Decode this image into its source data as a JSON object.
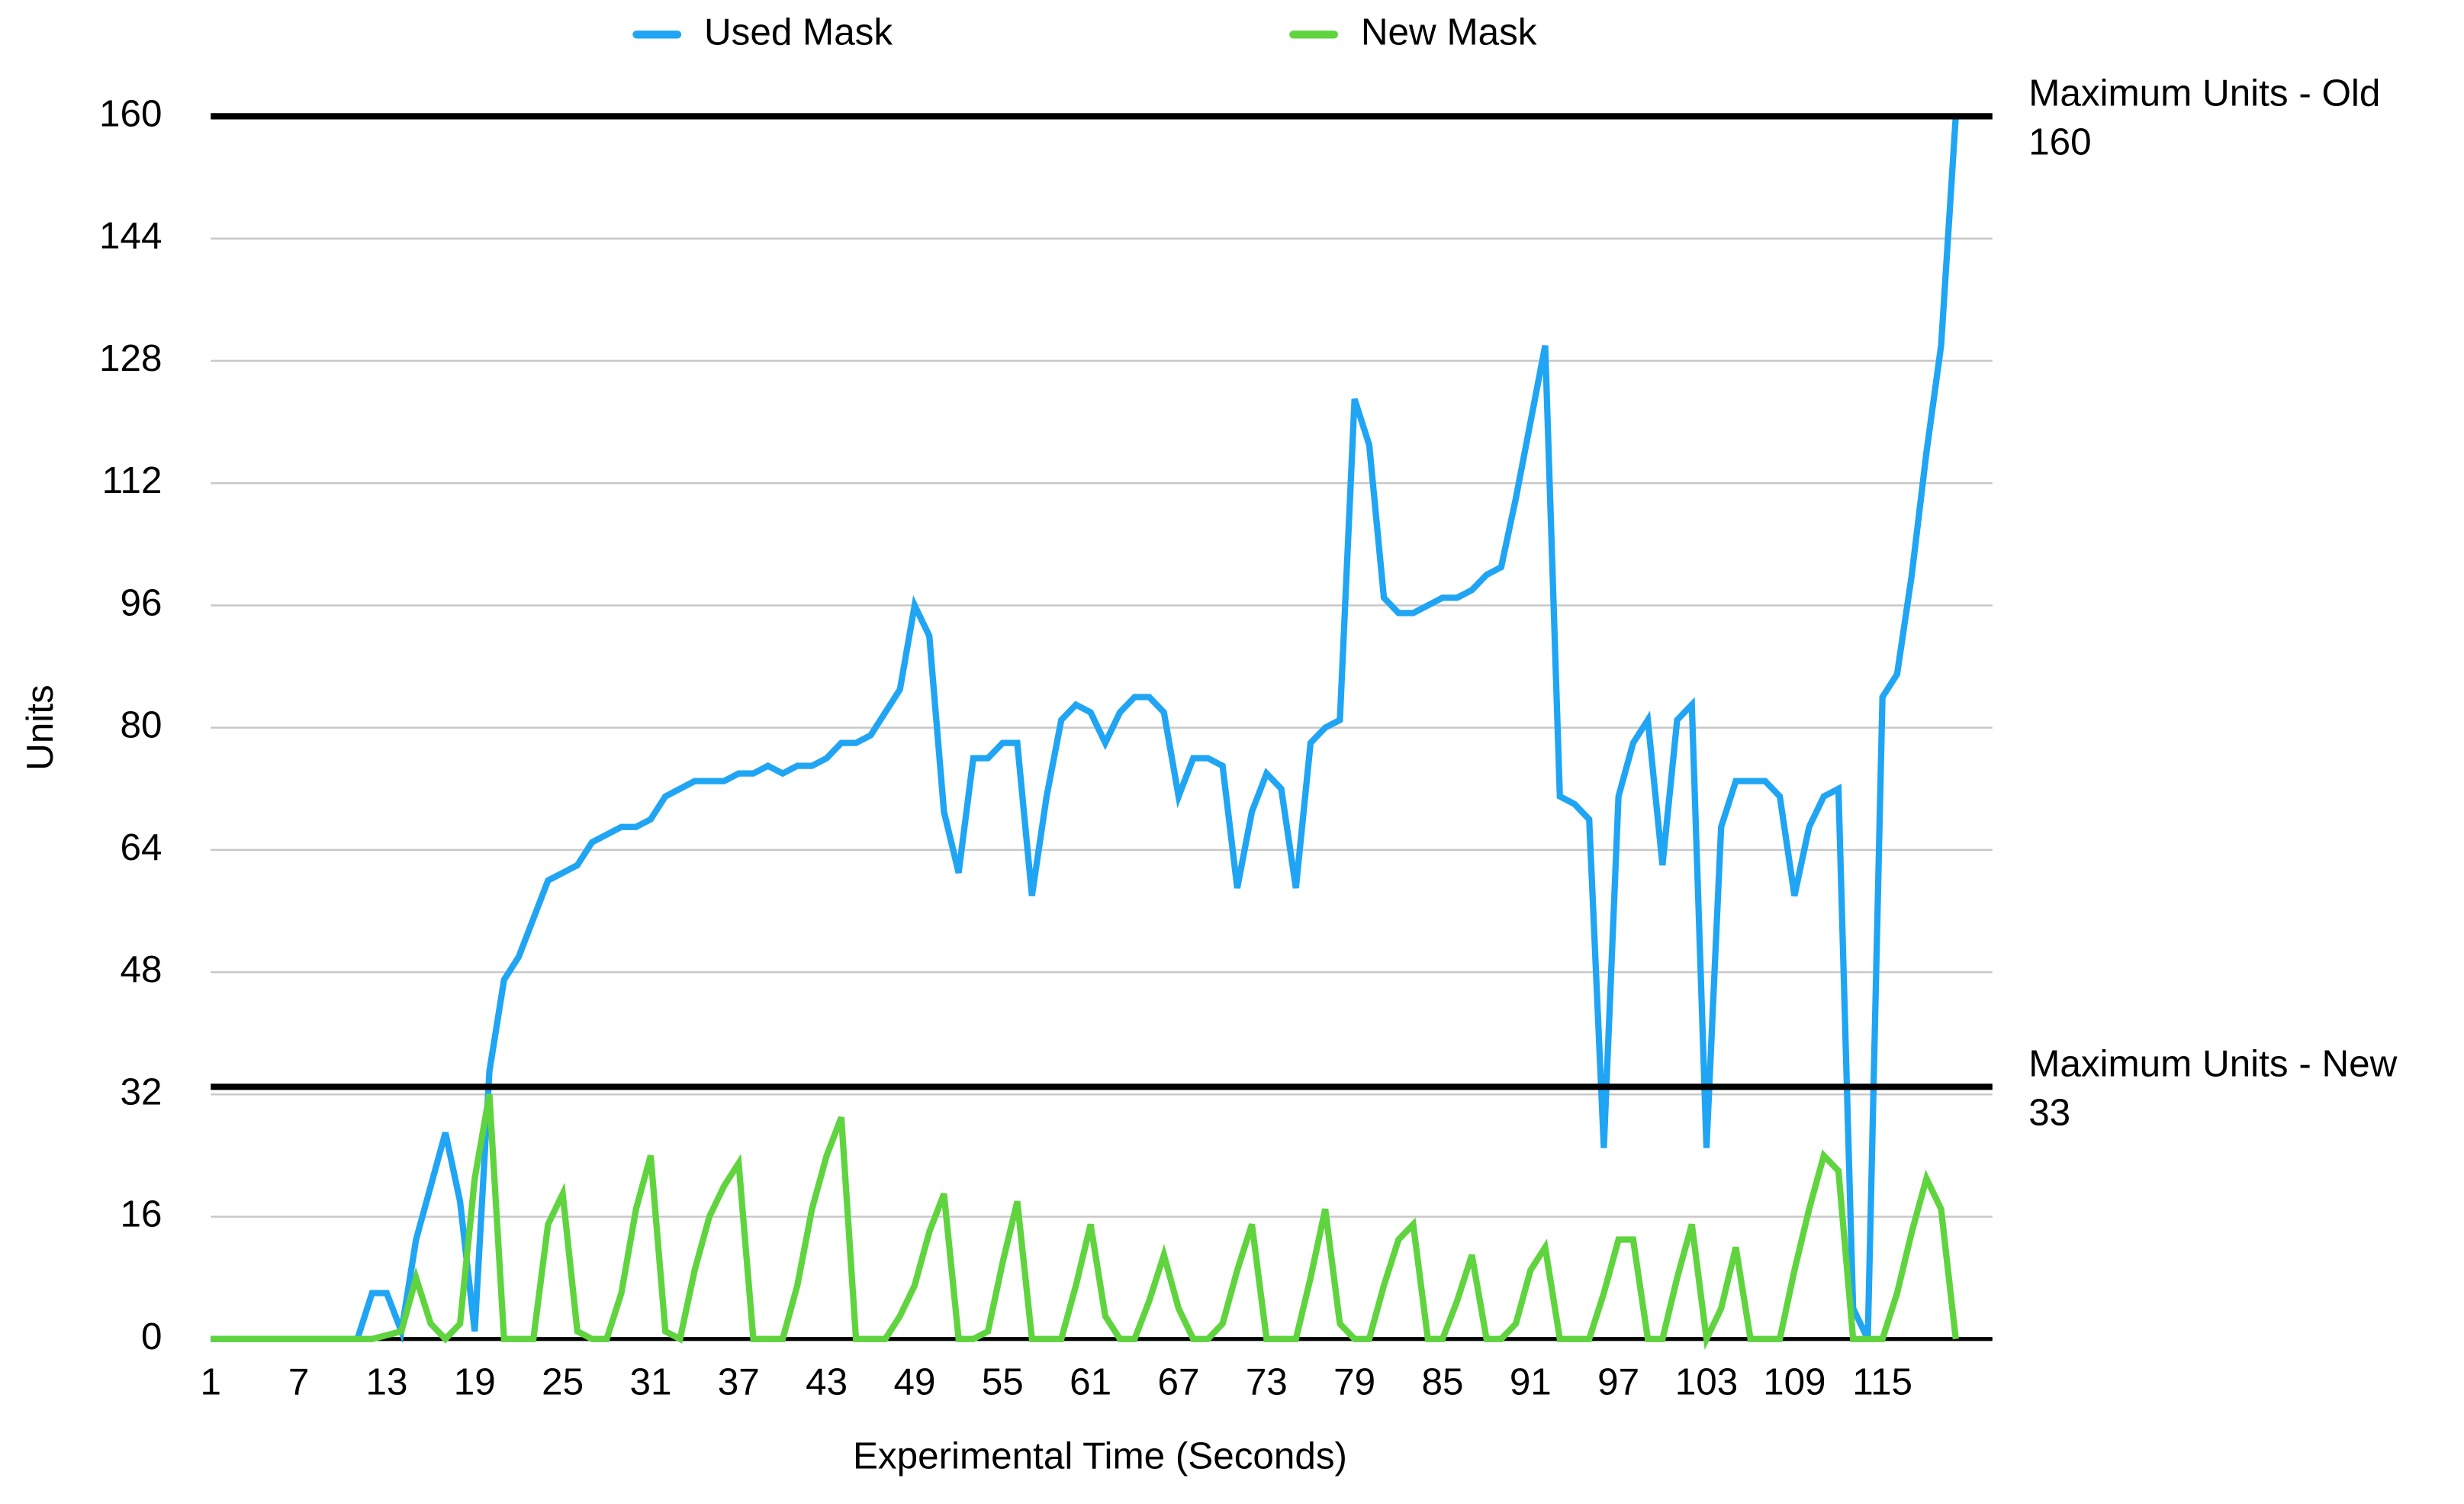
{
  "chart_data": {
    "type": "line",
    "xlabel": "Experimental Time (Seconds)",
    "ylabel": "Units",
    "x": [
      1,
      2,
      3,
      4,
      5,
      6,
      7,
      8,
      9,
      10,
      11,
      12,
      13,
      14,
      15,
      16,
      17,
      18,
      19,
      20,
      21,
      22,
      23,
      24,
      25,
      26,
      27,
      28,
      29,
      30,
      31,
      32,
      33,
      34,
      35,
      36,
      37,
      38,
      39,
      40,
      41,
      42,
      43,
      44,
      45,
      46,
      47,
      48,
      49,
      50,
      51,
      52,
      53,
      54,
      55,
      56,
      57,
      58,
      59,
      60,
      61,
      62,
      63,
      64,
      65,
      66,
      67,
      68,
      69,
      70,
      71,
      72,
      73,
      74,
      75,
      76,
      77,
      78,
      79,
      80,
      81,
      82,
      83,
      84,
      85,
      86,
      87,
      88,
      89,
      90,
      91,
      92,
      93,
      94,
      95,
      96,
      97,
      98,
      99,
      100,
      101,
      102,
      103,
      104,
      105,
      106,
      107,
      108,
      109,
      110,
      111,
      112,
      113,
      114,
      115,
      116,
      117,
      118,
      119,
      120
    ],
    "series": [
      {
        "name": "Used Mask",
        "color": "#1fa5f4",
        "values": [
          0,
          0,
          0,
          0,
          0,
          0,
          0,
          0,
          0,
          0,
          0,
          6,
          6,
          1,
          13,
          20,
          27,
          18,
          1,
          35,
          47,
          50,
          55,
          60,
          61,
          62,
          65,
          66,
          67,
          67,
          68,
          71,
          72,
          73,
          73,
          73,
          74,
          74,
          75,
          74,
          75,
          75,
          76,
          78,
          78,
          79,
          82,
          85,
          96,
          92,
          69,
          61,
          76,
          76,
          78,
          78,
          58,
          71,
          81,
          83,
          82,
          78,
          82,
          84,
          84,
          82,
          71,
          76,
          76,
          75,
          59,
          69,
          74,
          72,
          59,
          78,
          80,
          81,
          123,
          117,
          97,
          95,
          95,
          96,
          97,
          97,
          98,
          100,
          101,
          110,
          120,
          130,
          71,
          70,
          68,
          25,
          71,
          78,
          81,
          62,
          81,
          83,
          25,
          67,
          73,
          73,
          73,
          71,
          58,
          67,
          71,
          72,
          4,
          0,
          84,
          87,
          100,
          116,
          130,
          160
        ]
      },
      {
        "name": "New Mask",
        "color": "#5fd43e",
        "values": [
          0,
          0,
          0,
          0,
          0,
          0,
          0,
          0,
          0,
          0,
          0,
          0,
          0.5,
          1,
          8,
          2,
          0,
          2,
          21,
          32,
          0,
          0,
          0,
          15,
          19,
          1,
          0,
          0,
          6,
          17,
          24,
          1,
          0,
          9,
          16,
          20,
          23,
          0,
          0,
          0,
          7,
          17,
          24,
          29,
          0,
          0,
          0,
          3,
          7,
          14,
          19,
          0,
          0,
          1,
          10,
          18,
          0,
          0,
          0,
          7,
          15,
          3,
          0,
          0,
          5,
          11,
          4,
          0,
          0,
          2,
          9,
          15,
          0,
          0,
          0,
          8,
          17,
          2,
          0,
          0,
          7,
          13,
          15,
          0,
          0,
          5,
          11,
          0,
          0,
          2,
          9,
          12,
          0,
          0,
          0,
          6,
          13,
          13,
          0,
          0,
          8,
          15,
          0,
          4,
          12,
          0,
          0,
          0,
          9,
          17,
          24,
          22,
          0,
          0,
          0,
          6,
          14,
          21,
          17,
          0
        ]
      }
    ],
    "reference_lines": [
      {
        "label": "Maximum Units - Old",
        "value": 160
      },
      {
        "label": "Maximum Units - New",
        "value": 33
      }
    ],
    "xlim": [
      1,
      122.5
    ],
    "xticks": [
      1,
      7,
      13,
      19,
      25,
      31,
      37,
      43,
      49,
      55,
      61,
      67,
      73,
      79,
      85,
      91,
      97,
      103,
      109,
      115
    ],
    "ylim": [
      0,
      160
    ],
    "yticks": [
      0,
      16,
      32,
      48,
      64,
      80,
      96,
      112,
      128,
      144,
      160
    ],
    "grid": true,
    "legend": "top"
  }
}
